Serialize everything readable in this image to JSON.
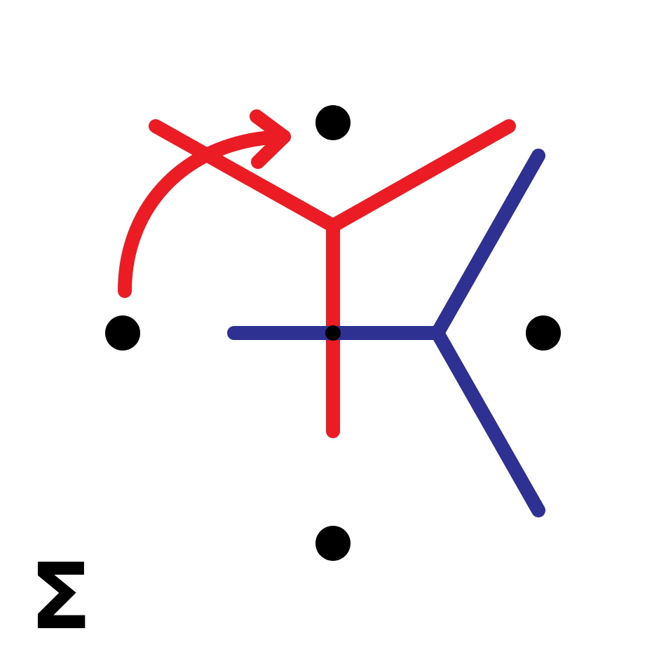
{
  "diagram": {
    "surface_label": "Σ",
    "colors": {
      "red_network": "#ec1c24",
      "blue_network": "#2e3192",
      "points": "#000000",
      "label": "#000000",
      "background": "#ffffff"
    },
    "elements": {
      "punctures": 4,
      "branch_points": 1,
      "red_network_edges": 3,
      "blue_network_edges": 3,
      "rotation_arrow": "curved-arrow"
    }
  }
}
